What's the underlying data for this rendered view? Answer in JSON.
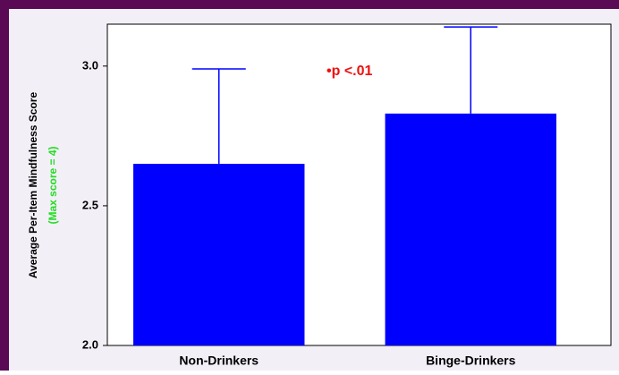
{
  "chart_data": {
    "type": "bar",
    "ylabel": "Average Per-Item Mindfulness Score",
    "ylabel2": "(Max score = 4)",
    "annotation": "•p <.01",
    "categories": [
      "Non-Drinkers",
      "Binge-Drinkers"
    ],
    "values": [
      2.65,
      2.83
    ],
    "errors": [
      0.34,
      0.31
    ],
    "color": "#0000ff",
    "ylim": [
      2.0,
      3.15
    ],
    "yticks": [
      {
        "value": 2,
        "label": "2.0"
      },
      {
        "value": 2.5,
        "label": "2.5"
      },
      {
        "value": 3,
        "label": "3.0"
      }
    ]
  }
}
